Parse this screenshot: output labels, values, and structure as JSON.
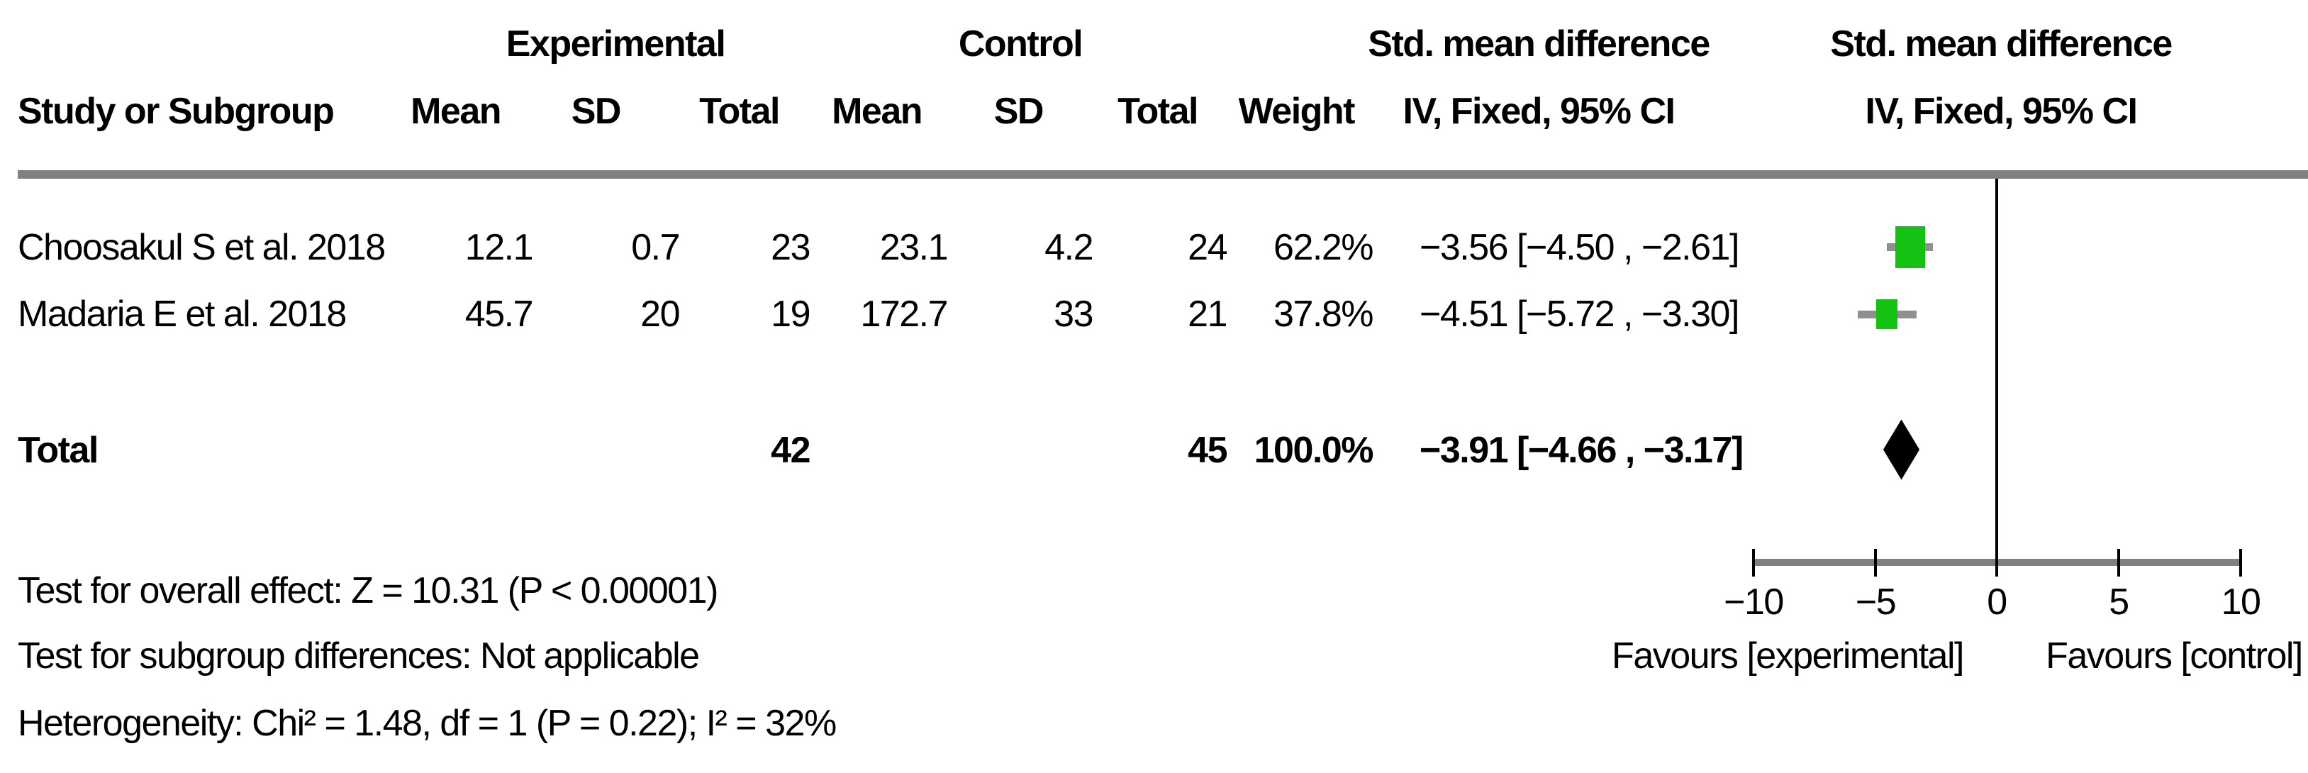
{
  "header": {
    "study_col": "Study or Subgroup",
    "group_experimental": "Experimental",
    "group_control": "Control",
    "mean": "Mean",
    "sd": "SD",
    "total": "Total",
    "weight": "Weight",
    "smd_title": "Std. mean difference",
    "smd_subtitle": "IV, Fixed, 95% CI"
  },
  "rows": [
    {
      "study": "Choosakul S et al. 2018",
      "exp_mean": "12.1",
      "exp_sd": "0.7",
      "exp_total": "23",
      "ctl_mean": "23.1",
      "ctl_sd": "4.2",
      "ctl_total": "24",
      "weight": "62.2%",
      "ci_text": "−3.56 [−4.50 , −2.61]"
    },
    {
      "study": "Madaria E et al. 2018",
      "exp_mean": "45.7",
      "exp_sd": "20",
      "exp_total": "19",
      "ctl_mean": "172.7",
      "ctl_sd": "33",
      "ctl_total": "21",
      "weight": "37.8%",
      "ci_text": "−4.51 [−5.72 , −3.30]"
    }
  ],
  "total_row": {
    "label": "Total",
    "exp_total": "42",
    "ctl_total": "45",
    "weight": "100.0%",
    "ci_text": "−3.91 [−4.66 , −3.17]"
  },
  "footer": {
    "overall_effect": "Test for overall effect: Z = 10.31 (P < 0.00001)",
    "subgroup_differences": "Test for subgroup differences: Not applicable",
    "heterogeneity": "Heterogeneity: Chi² = 1.48, df = 1 (P = 0.22); I² = 32%"
  },
  "axis": {
    "ticks": [
      "−10",
      "−5",
      "0",
      "5",
      "10"
    ],
    "favours_left": "Favours [experimental]",
    "favours_right": "Favours [control]"
  },
  "colors": {
    "marker_green": "#14C214",
    "ci_gray": "#8F8F8F",
    "rule_gray": "#808080",
    "diamond_black": "#000000"
  },
  "chart_data": {
    "type": "forest_plot",
    "effect_measure": "Std. mean difference",
    "model": "IV, Fixed, 95% CI",
    "studies": [
      {
        "name": "Choosakul S et al. 2018",
        "experimental": {
          "mean": 12.1,
          "sd": 0.7,
          "total": 23
        },
        "control": {
          "mean": 23.1,
          "sd": 4.2,
          "total": 24
        },
        "weight_pct": 62.2,
        "smd": -3.56,
        "ci": [
          -4.5,
          -2.61
        ]
      },
      {
        "name": "Madaria E et al. 2018",
        "experimental": {
          "mean": 45.7,
          "sd": 20,
          "total": 19
        },
        "control": {
          "mean": 172.7,
          "sd": 33,
          "total": 21
        },
        "weight_pct": 37.8,
        "smd": -4.51,
        "ci": [
          -5.72,
          -3.3
        ]
      }
    ],
    "total": {
      "name": "Total",
      "experimental_total": 42,
      "control_total": 45,
      "weight_pct": 100.0,
      "smd": -3.91,
      "ci": [
        -4.66,
        -3.17
      ]
    },
    "xlim": [
      -10,
      10
    ],
    "x_ticks": [
      -10,
      -5,
      0,
      5,
      10
    ],
    "null_line": 0,
    "axis_labels": {
      "left": "Favours [experimental]",
      "right": "Favours [control]"
    },
    "legend_position": "none",
    "grid": false
  }
}
